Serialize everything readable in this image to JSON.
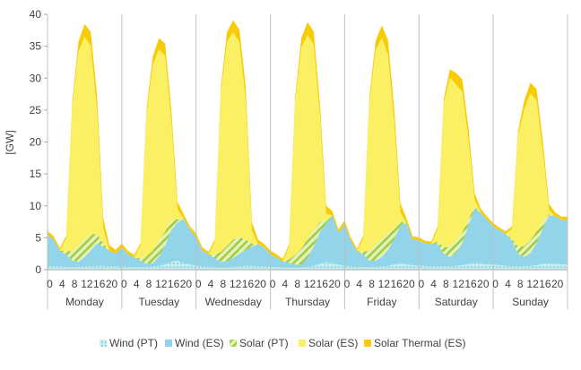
{
  "chart_data": {
    "type": "area",
    "stacked": true,
    "title": "",
    "ylabel": "[GW]",
    "xlabel": "",
    "ylim": [
      0,
      40
    ],
    "yticks": [
      0,
      5,
      10,
      15,
      20,
      25,
      30,
      35,
      40
    ],
    "grid": false,
    "legend_position": "bottom",
    "hour_ticks": [
      "0",
      "4",
      "8",
      "12",
      "16",
      "20"
    ],
    "days": [
      "Monday",
      "Tuesday",
      "Wednesday",
      "Thursday",
      "Friday",
      "Saturday",
      "Sunday"
    ],
    "x": [
      0,
      2,
      4,
      6,
      8,
      10,
      12,
      14,
      16,
      18,
      20,
      22
    ],
    "series": [
      {
        "name": "Wind (PT)",
        "color": "#a9e3e6",
        "pattern": "dots",
        "values": [
          [
            0.5,
            0.5,
            0.5,
            0.4,
            0.4,
            0.4,
            0.5,
            0.5,
            0.6,
            0.6,
            0.5,
            0.5
          ],
          [
            0.5,
            0.4,
            0.4,
            0.4,
            0.4,
            0.5,
            0.6,
            0.8,
            1.2,
            1.4,
            1.0,
            0.8
          ],
          [
            0.6,
            0.5,
            0.4,
            0.3,
            0.3,
            0.3,
            0.4,
            0.5,
            0.6,
            0.6,
            0.5,
            0.5
          ],
          [
            0.4,
            0.4,
            0.3,
            0.3,
            0.3,
            0.3,
            0.4,
            0.6,
            0.9,
            1.2,
            1.0,
            0.8
          ],
          [
            0.6,
            0.5,
            0.4,
            0.4,
            0.4,
            0.4,
            0.5,
            0.6,
            0.8,
            1.0,
            0.8,
            0.7
          ],
          [
            0.6,
            0.6,
            0.5,
            0.5,
            0.5,
            0.5,
            0.6,
            0.7,
            0.9,
            1.1,
            0.9,
            0.8
          ],
          [
            0.8,
            0.7,
            0.6,
            0.5,
            0.5,
            0.5,
            0.6,
            0.7,
            0.9,
            1.0,
            0.9,
            0.8
          ]
        ]
      },
      {
        "name": "Wind (ES)",
        "color": "#92d5ea",
        "pattern": "solid",
        "values": [
          [
            5.0,
            4.2,
            2.5,
            2.0,
            1.0,
            0.8,
            1.5,
            2.5,
            3.5,
            3.0,
            2.5,
            2.0
          ],
          [
            3.0,
            2.0,
            1.5,
            1.0,
            0.5,
            0.5,
            1.5,
            3.0,
            5.0,
            6.0,
            7.0,
            5.5
          ],
          [
            4.5,
            2.5,
            2.0,
            1.5,
            1.0,
            1.0,
            1.5,
            2.0,
            2.5,
            3.0,
            3.5,
            3.0
          ],
          [
            2.0,
            1.5,
            1.0,
            0.8,
            0.5,
            0.5,
            1.5,
            3.0,
            5.0,
            6.0,
            7.5,
            5.0
          ],
          [
            6.5,
            4.0,
            2.5,
            2.0,
            1.0,
            1.0,
            1.5,
            2.5,
            4.0,
            6.0,
            6.5,
            4.0
          ],
          [
            4.0,
            3.5,
            3.5,
            3.5,
            2.0,
            1.5,
            2.0,
            3.5,
            6.0,
            8.5,
            8.0,
            7.0
          ],
          [
            6.0,
            5.5,
            5.0,
            4.0,
            2.0,
            1.5,
            2.0,
            3.5,
            5.5,
            7.5,
            7.5,
            7.0
          ]
        ]
      },
      {
        "name": "Solar (PT)",
        "color": "#c5e08a",
        "pattern": "stripes",
        "values": [
          [
            0,
            0,
            0,
            0.5,
            1.5,
            2.5,
            2.8,
            2.5,
            1.5,
            0.5,
            0,
            0
          ],
          [
            0,
            0,
            0,
            0.4,
            1.2,
            2.0,
            2.4,
            2.2,
            1.5,
            0.5,
            0,
            0
          ],
          [
            0,
            0,
            0,
            0.5,
            1.5,
            2.4,
            2.8,
            2.6,
            1.6,
            0.5,
            0,
            0
          ],
          [
            0,
            0,
            0,
            0.5,
            1.5,
            2.5,
            2.9,
            2.6,
            1.6,
            0.5,
            0,
            0
          ],
          [
            0,
            0,
            0,
            0.5,
            1.5,
            2.5,
            2.8,
            2.6,
            1.6,
            0.5,
            0,
            0
          ],
          [
            0,
            0,
            0,
            0.4,
            1.0,
            1.6,
            1.9,
            1.7,
            1.0,
            0.3,
            0,
            0
          ],
          [
            0,
            0,
            0,
            0.4,
            1.1,
            1.7,
            2.0,
            1.8,
            1.1,
            0.3,
            0,
            0
          ]
        ]
      },
      {
        "name": "Solar (ES)",
        "color": "#fbef64",
        "pattern": "solid",
        "values": [
          [
            0,
            0,
            0,
            2.0,
            22.5,
            30.5,
            31.7,
            29.5,
            19.5,
            2.5,
            0,
            0
          ],
          [
            0,
            0,
            0,
            2.0,
            22.5,
            29.0,
            30.0,
            27.5,
            15.5,
            1.5,
            0,
            0
          ],
          [
            0,
            0,
            0,
            2.0,
            25.0,
            32.0,
            32.5,
            30.5,
            22.0,
            2.0,
            0,
            0
          ],
          [
            0,
            0,
            0,
            2.0,
            24.0,
            31.5,
            32.0,
            29.0,
            16.5,
            1.0,
            0,
            0
          ],
          [
            0,
            0,
            0,
            2.0,
            23.5,
            30.5,
            31.5,
            28.0,
            16.5,
            1.5,
            0,
            0
          ],
          [
            0,
            0,
            0,
            2.0,
            22.5,
            26.5,
            24.5,
            22.0,
            12.5,
            1.0,
            0,
            0
          ],
          [
            0,
            0,
            0,
            1.5,
            17.5,
            21.5,
            23.0,
            20.5,
            11.0,
            0.5,
            0,
            0
          ]
        ]
      },
      {
        "name": "Solar Thermal (ES)",
        "color": "#f7cc07",
        "pattern": "solid",
        "values": [
          [
            0.6,
            0.5,
            0.4,
            0.4,
            0.8,
            1.5,
            2.0,
            2.2,
            2.2,
            1.5,
            0.8,
            0.6
          ],
          [
            0.6,
            0.5,
            0.4,
            0.4,
            0.8,
            1.4,
            1.8,
            1.9,
            1.8,
            1.2,
            0.7,
            0.5
          ],
          [
            0.6,
            0.5,
            0.4,
            0.4,
            0.8,
            1.5,
            1.9,
            2.0,
            2.0,
            1.4,
            0.7,
            0.5
          ],
          [
            0.6,
            0.5,
            0.4,
            0.4,
            0.8,
            1.5,
            2.0,
            2.1,
            2.0,
            1.3,
            0.7,
            0.5
          ],
          [
            0.6,
            0.5,
            0.4,
            0.4,
            0.8,
            1.5,
            2.0,
            2.2,
            2.2,
            1.4,
            0.7,
            0.5
          ],
          [
            0.5,
            0.4,
            0.4,
            0.4,
            0.7,
            1.3,
            1.8,
            1.9,
            1.8,
            1.1,
            0.6,
            0.5
          ],
          [
            0.5,
            0.4,
            0.4,
            0.4,
            0.7,
            1.3,
            1.7,
            1.8,
            1.7,
            1.0,
            0.6,
            0.5
          ]
        ]
      }
    ]
  }
}
